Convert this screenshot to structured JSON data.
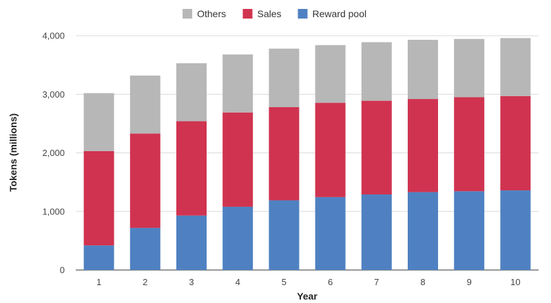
{
  "chart_data": {
    "type": "bar",
    "stacked": true,
    "title": "",
    "xlabel": "Year",
    "ylabel": "Tokens (millions)",
    "categories": [
      "1",
      "2",
      "3",
      "4",
      "5",
      "6",
      "7",
      "8",
      "9",
      "10"
    ],
    "series": [
      {
        "name": "Reward pool",
        "color": "#4f81c2",
        "values": [
          420,
          720,
          930,
          1080,
          1190,
          1245,
          1290,
          1330,
          1345,
          1360
        ]
      },
      {
        "name": "Sales",
        "color": "#d03350",
        "values": [
          1610,
          1610,
          1610,
          1610,
          1590,
          1610,
          1600,
          1590,
          1605,
          1610
        ]
      },
      {
        "name": "Others",
        "color": "#b7b7b7",
        "values": [
          990,
          990,
          990,
          990,
          1000,
          985,
          1000,
          1010,
          995,
          990
        ]
      }
    ],
    "legend_order": [
      "Others",
      "Sales",
      "Reward pool"
    ],
    "ylim": [
      0,
      4000
    ],
    "yticks": [
      0,
      1000,
      2000,
      3000,
      4000
    ],
    "ytick_labels": [
      "0",
      "1,000",
      "2,000",
      "3,000",
      "4,000"
    ],
    "grid": true,
    "legend_position": "top"
  }
}
